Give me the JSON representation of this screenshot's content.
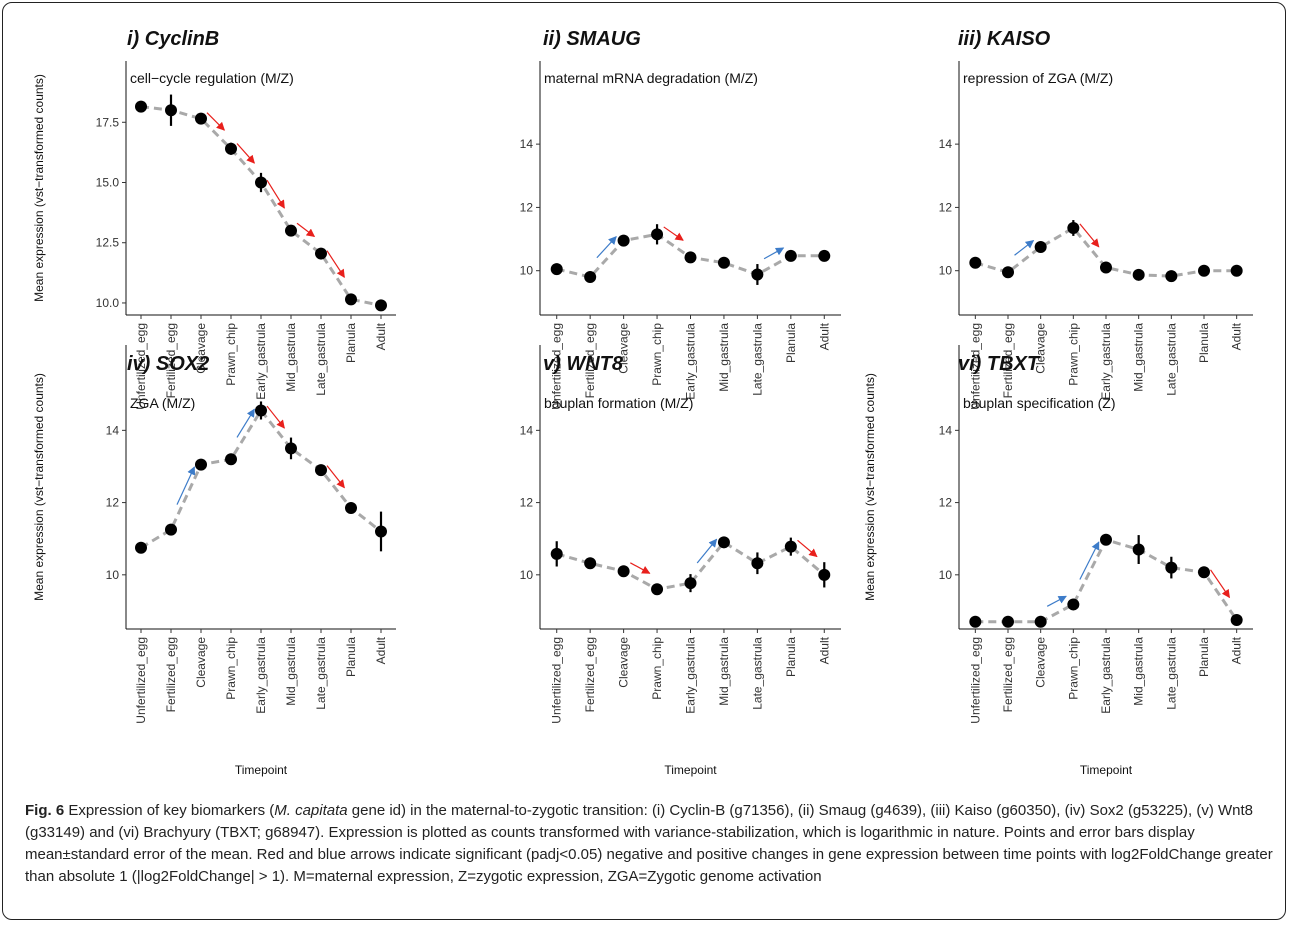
{
  "caption": {
    "label": "Fig. 6",
    "text_before_italic": " Expression of key biomarkers (",
    "italic": "M. capitata",
    "text_after_italic": " gene id) in the maternal-to-zygotic transition: (i) Cyclin-B (g71356), (ii) Smaug (g4639), (iii) Kaiso (g60350), (iv) Sox2 (g53225), (v) Wnt8 (g33149) and (vi) Brachyury (TBXT; g68947). Expression is plotted as counts transformed with variance-stabilization, which is logarithmic in nature. Points and error bars display mean±standard error of the mean. Red and blue arrows indicate significant (padj<0.05) negative and positive changes in gene expression between time points with log2FoldChange greater than absolute 1 (|log2FoldChange| > 1). M=maternal expression, Z=zygotic expression, ZGA=Zygotic genome activation"
  },
  "colors": {
    "point": "#000000",
    "line": "#a9a9a9",
    "down_arrow": "#e8201c",
    "up_arrow": "#3d7cc9"
  },
  "chart_data": [
    {
      "type": "line",
      "title": "i) CyclinB",
      "subtitle": "cell−cycle regulation (M/Z)",
      "xlabel": "",
      "ylabel": "Mean expression (vst−transformed counts)",
      "categories": [
        "Unfertilized_egg",
        "Fertilized_egg",
        "Cleavage",
        "Prawn_chip",
        "Early_gastrula",
        "Mid_gastrula",
        "Late_gastrula",
        "Planula",
        "Adult"
      ],
      "ylim": [
        9.5,
        18.3
      ],
      "yticks": [
        10.0,
        12.5,
        15.0,
        17.5
      ],
      "ytick_labels": [
        "10.0",
        "12.5",
        "15.0",
        "17.5"
      ],
      "values": [
        18.15,
        18.0,
        17.65,
        16.4,
        15.0,
        13.0,
        12.05,
        10.15,
        9.9
      ],
      "errors": [
        0.1,
        0.65,
        0.1,
        0.25,
        0.4,
        0.1,
        0.1,
        0.1,
        0.1
      ],
      "arrows": [
        {
          "from": 2,
          "to": 3,
          "dir": "down"
        },
        {
          "from": 3,
          "to": 4,
          "dir": "down"
        },
        {
          "from": 4,
          "to": 5,
          "dir": "down"
        },
        {
          "from": 5,
          "to": 6,
          "dir": "down"
        },
        {
          "from": 6,
          "to": 7,
          "dir": "down"
        }
      ]
    },
    {
      "type": "line",
      "title": "ii) SMAUG",
      "subtitle": "maternal mRNA degradation (M/Z)",
      "xlabel": "",
      "ylabel": "",
      "categories": [
        "Unfertilized_egg",
        "Fertilized_egg",
        "Cleavage",
        "Prawn_chip",
        "Early_gastrula",
        "Mid_gastrula",
        "Late_gastrula",
        "Planula",
        "Adult"
      ],
      "ylim": [
        8.6,
        15.3
      ],
      "yticks": [
        10,
        12,
        14
      ],
      "ytick_labels": [
        "10",
        "12",
        "14"
      ],
      "values": [
        10.05,
        9.8,
        10.95,
        11.15,
        10.42,
        10.25,
        9.88,
        10.47,
        10.47
      ],
      "errors": [
        0.18,
        0.1,
        0.1,
        0.32,
        0.12,
        0.1,
        0.33,
        0.1,
        0.1
      ],
      "arrows": [
        {
          "from": 1,
          "to": 2,
          "dir": "up"
        },
        {
          "from": 3,
          "to": 4,
          "dir": "down"
        },
        {
          "from": 6,
          "to": 7,
          "dir": "up"
        }
      ]
    },
    {
      "type": "line",
      "title": "iii) KAISO",
      "subtitle": "repression of ZGA (M/Z)",
      "xlabel": "",
      "ylabel": "",
      "categories": [
        "Unfertilized_egg",
        "Fertilized_egg",
        "Cleavage",
        "Prawn_chip",
        "Early_gastrula",
        "Mid_gastrula",
        "Late_gastrula",
        "Planula",
        "Adult"
      ],
      "ylim": [
        8.6,
        15.3
      ],
      "yticks": [
        10,
        12,
        14
      ],
      "ytick_labels": [
        "10",
        "12",
        "14"
      ],
      "values": [
        10.25,
        9.95,
        10.75,
        11.35,
        10.1,
        9.87,
        9.83,
        10.0,
        10.0
      ],
      "errors": [
        0.1,
        0.1,
        0.1,
        0.25,
        0.1,
        0.1,
        0.1,
        0.1,
        0.1
      ],
      "arrows": [
        {
          "from": 1,
          "to": 2,
          "dir": "up"
        },
        {
          "from": 3,
          "to": 4,
          "dir": "down"
        }
      ]
    },
    {
      "type": "line",
      "title": "iv) SOX2",
      "subtitle": "ZGA (M/Z)",
      "xlabel": "Timepoint",
      "ylabel": "Mean expression (vst−transformed counts)",
      "categories": [
        "Unfertilized_egg",
        "Fertilized_egg",
        "Cleavage",
        "Prawn_chip",
        "Early_gastrula",
        "Mid_gastrula",
        "Late_gastrula",
        "Planula",
        "Adult"
      ],
      "ylim": [
        8.5,
        15.2
      ],
      "yticks": [
        10,
        12,
        14
      ],
      "ytick_labels": [
        "10",
        "12",
        "14"
      ],
      "values": [
        10.75,
        11.25,
        13.05,
        13.2,
        14.55,
        13.5,
        12.9,
        11.85,
        11.2
      ],
      "errors": [
        0.1,
        0.1,
        0.1,
        0.1,
        0.25,
        0.3,
        0.1,
        0.15,
        0.55
      ],
      "arrows": [
        {
          "from": 1,
          "to": 2,
          "dir": "up"
        },
        {
          "from": 3,
          "to": 4,
          "dir": "up"
        },
        {
          "from": 4,
          "to": 5,
          "dir": "down"
        },
        {
          "from": 6,
          "to": 7,
          "dir": "down"
        }
      ]
    },
    {
      "type": "line",
      "title": "v) WNT8",
      "subtitle": "bauplan formation (M/Z)",
      "xlabel": "Timepoint",
      "ylabel": "",
      "categories": [
        "Unfertilized_egg",
        "Fertilized_egg",
        "Cleavage",
        "Prawn_chip",
        "Early_gastrula",
        "Mid_gastrula",
        "Late_gastrula",
        "Planula",
        "Adult"
      ],
      "ylim": [
        8.5,
        15.2
      ],
      "yticks": [
        10,
        12,
        14
      ],
      "ytick_labels": [
        "10",
        "12",
        "14"
      ],
      "values": [
        10.58,
        10.32,
        10.1,
        9.6,
        9.77,
        10.9,
        10.32,
        10.78,
        10.0
      ],
      "errors": [
        0.35,
        0.1,
        0.1,
        0.1,
        0.25,
        0.1,
        0.3,
        0.25,
        0.35
      ],
      "arrows": [
        {
          "from": 2,
          "to": 3,
          "dir": "down"
        },
        {
          "from": 4,
          "to": 5,
          "dir": "up"
        },
        {
          "from": 7,
          "to": 8,
          "dir": "down"
        }
      ]
    },
    {
      "type": "line",
      "title": "vi) TBXT",
      "subtitle": "bauplan specification (Z)",
      "xlabel": "Timepoint",
      "ylabel": "Mean expression (vst−transformed counts)",
      "categories": [
        "Unfertilized_egg",
        "Fertilized_egg",
        "Cleavage",
        "Prawn_chip",
        "Early_gastrula",
        "Mid_gastrula",
        "Late_gastrula",
        "Planula",
        "Adult"
      ],
      "ylim": [
        8.5,
        15.2
      ],
      "yticks": [
        10,
        12,
        14
      ],
      "ytick_labels": [
        "10",
        "12",
        "14"
      ],
      "values": [
        8.7,
        8.7,
        8.7,
        9.18,
        10.97,
        10.7,
        10.2,
        10.07,
        8.75
      ],
      "errors": [
        0.05,
        0.05,
        0.05,
        0.1,
        0.1,
        0.4,
        0.3,
        0.1,
        0.1
      ],
      "arrows": [
        {
          "from": 2,
          "to": 3,
          "dir": "up"
        },
        {
          "from": 3,
          "to": 4,
          "dir": "up"
        },
        {
          "from": 7,
          "to": 8,
          "dir": "down"
        }
      ]
    }
  ]
}
